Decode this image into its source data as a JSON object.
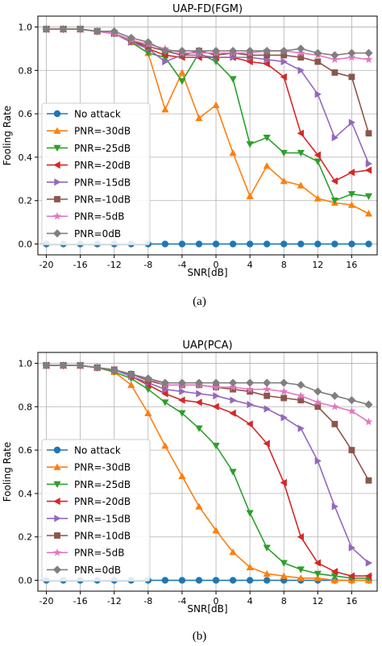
{
  "chart_data": [
    {
      "type": "line",
      "title": "UAP-FD(FGM)",
      "xlabel": "SNR[dB]",
      "ylabel": "Fooling Rate",
      "caption": "(a)",
      "xlim": [
        -21,
        19
      ],
      "ylim": [
        -0.05,
        1.05
      ],
      "xticks": [
        -20,
        -16,
        -12,
        -8,
        -4,
        0,
        4,
        8,
        12,
        16
      ],
      "xtick_labels": [
        "-20",
        "-16",
        "-12",
        "-8",
        "-4",
        "0",
        "4",
        "8",
        "12",
        "16"
      ],
      "yticks": [
        0.0,
        0.2,
        0.4,
        0.6,
        0.8,
        1.0
      ],
      "ytick_labels": [
        "0.0",
        "0.2",
        "0.4",
        "0.6",
        "0.8",
        "1.0"
      ],
      "grid": true,
      "legend_position": "lower-left",
      "x": [
        -20,
        -18,
        -16,
        -14,
        -12,
        -10,
        -8,
        -6,
        -4,
        -2,
        0,
        2,
        4,
        6,
        8,
        10,
        12,
        14,
        16,
        18
      ],
      "series": [
        {
          "name": "No attack",
          "color": "#1f77b4",
          "marker": "circle",
          "values": [
            0,
            0,
            0,
            0,
            0,
            0,
            0,
            0,
            0,
            0,
            0,
            0,
            0,
            0,
            0,
            0,
            0,
            0,
            0,
            0
          ]
        },
        {
          "name": "PNR=-30dB",
          "color": "#ff7f0e",
          "marker": "triangle-up",
          "values": [
            0.99,
            0.99,
            0.99,
            0.98,
            0.97,
            0.93,
            0.88,
            0.62,
            0.79,
            0.58,
            0.64,
            0.42,
            0.22,
            0.36,
            0.29,
            0.27,
            0.21,
            0.19,
            0.18,
            0.14
          ]
        },
        {
          "name": "PNR=-25dB",
          "color": "#2ca02c",
          "marker": "triangle-down",
          "values": [
            0.99,
            0.99,
            0.99,
            0.98,
            0.97,
            0.93,
            0.88,
            0.86,
            0.75,
            0.88,
            0.84,
            0.76,
            0.46,
            0.49,
            0.42,
            0.42,
            0.38,
            0.2,
            0.23,
            0.22
          ]
        },
        {
          "name": "PNR=-20dB",
          "color": "#d62728",
          "marker": "triangle-left",
          "values": [
            0.99,
            0.99,
            0.99,
            0.98,
            0.97,
            0.94,
            0.9,
            0.87,
            0.86,
            0.86,
            0.86,
            0.86,
            0.84,
            0.83,
            0.77,
            0.51,
            0.41,
            0.29,
            0.33,
            0.34
          ]
        },
        {
          "name": "PNR=-15dB",
          "color": "#9467bd",
          "marker": "triangle-right",
          "values": [
            0.99,
            0.99,
            0.99,
            0.98,
            0.97,
            0.93,
            0.9,
            0.84,
            0.87,
            0.87,
            0.86,
            0.86,
            0.86,
            0.85,
            0.84,
            0.8,
            0.69,
            0.49,
            0.56,
            0.37
          ]
        },
        {
          "name": "PNR=-10dB",
          "color": "#8c564b",
          "marker": "square",
          "values": [
            0.99,
            0.99,
            0.99,
            0.98,
            0.97,
            0.94,
            0.91,
            0.89,
            0.87,
            0.89,
            0.87,
            0.88,
            0.87,
            0.87,
            0.87,
            0.86,
            0.84,
            0.79,
            0.77,
            0.51
          ]
        },
        {
          "name": "PNR=-5dB",
          "color": "#e377c2",
          "marker": "star",
          "values": [
            0.99,
            0.99,
            0.99,
            0.98,
            0.97,
            0.94,
            0.92,
            0.9,
            0.88,
            0.88,
            0.88,
            0.88,
            0.88,
            0.89,
            0.89,
            0.88,
            0.87,
            0.85,
            0.86,
            0.85
          ]
        },
        {
          "name": "PNR=0dB",
          "color": "#7f7f7f",
          "marker": "diamond",
          "values": [
            0.99,
            0.99,
            0.99,
            0.98,
            0.98,
            0.95,
            0.93,
            0.89,
            0.89,
            0.89,
            0.89,
            0.89,
            0.89,
            0.89,
            0.89,
            0.9,
            0.88,
            0.87,
            0.88,
            0.88
          ]
        }
      ]
    },
    {
      "type": "line",
      "title": "UAP(PCA)",
      "xlabel": "SNR[dB]",
      "ylabel": "Fooling Rate",
      "caption": "(b)",
      "xlim": [
        -21,
        19
      ],
      "ylim": [
        -0.05,
        1.05
      ],
      "xticks": [
        -20,
        -16,
        -12,
        -8,
        -4,
        0,
        4,
        8,
        12,
        16
      ],
      "xtick_labels": [
        "-20",
        "-16",
        "-12",
        "-8",
        "-4",
        "0",
        "4",
        "8",
        "12",
        "16"
      ],
      "yticks": [
        0.0,
        0.2,
        0.4,
        0.6,
        0.8,
        1.0
      ],
      "ytick_labels": [
        "0.0",
        "0.2",
        "0.4",
        "0.6",
        "0.8",
        "1.0"
      ],
      "grid": true,
      "legend_position": "lower-left",
      "x": [
        -20,
        -18,
        -16,
        -14,
        -12,
        -10,
        -8,
        -6,
        -4,
        -2,
        0,
        2,
        4,
        6,
        8,
        10,
        12,
        14,
        16,
        18
      ],
      "series": [
        {
          "name": "No attack",
          "color": "#1f77b4",
          "marker": "circle",
          "values": [
            0,
            0,
            0,
            0,
            0,
            0,
            0,
            0,
            0,
            0,
            0,
            0,
            0,
            0,
            0,
            0,
            0,
            0,
            0,
            0
          ]
        },
        {
          "name": "PNR=-30dB",
          "color": "#ff7f0e",
          "marker": "triangle-up",
          "values": [
            0.99,
            0.99,
            0.99,
            0.98,
            0.96,
            0.9,
            0.77,
            0.62,
            0.48,
            0.34,
            0.23,
            0.13,
            0.06,
            0.03,
            0.02,
            0.01,
            0.01,
            0.0,
            0.0,
            0.0
          ]
        },
        {
          "name": "PNR=-25dB",
          "color": "#2ca02c",
          "marker": "triangle-down",
          "values": [
            0.99,
            0.99,
            0.99,
            0.98,
            0.96,
            0.93,
            0.88,
            0.82,
            0.77,
            0.7,
            0.62,
            0.5,
            0.31,
            0.15,
            0.08,
            0.05,
            0.03,
            0.02,
            0.01,
            0.01
          ]
        },
        {
          "name": "PNR=-20dB",
          "color": "#d62728",
          "marker": "triangle-left",
          "values": [
            0.99,
            0.99,
            0.99,
            0.98,
            0.97,
            0.94,
            0.9,
            0.86,
            0.83,
            0.82,
            0.8,
            0.77,
            0.72,
            0.63,
            0.45,
            0.2,
            0.08,
            0.04,
            0.02,
            0.02
          ]
        },
        {
          "name": "PNR=-15dB",
          "color": "#9467bd",
          "marker": "triangle-right",
          "values": [
            0.99,
            0.99,
            0.99,
            0.98,
            0.97,
            0.94,
            0.91,
            0.88,
            0.87,
            0.86,
            0.85,
            0.83,
            0.81,
            0.79,
            0.75,
            0.7,
            0.55,
            0.34,
            0.15,
            0.08
          ]
        },
        {
          "name": "PNR=-10dB",
          "color": "#8c564b",
          "marker": "square",
          "values": [
            0.99,
            0.99,
            0.99,
            0.98,
            0.97,
            0.95,
            0.92,
            0.9,
            0.9,
            0.9,
            0.89,
            0.88,
            0.87,
            0.85,
            0.84,
            0.83,
            0.8,
            0.72,
            0.6,
            0.46
          ]
        },
        {
          "name": "PNR=-5dB",
          "color": "#e377c2",
          "marker": "star",
          "values": [
            0.99,
            0.99,
            0.99,
            0.98,
            0.97,
            0.95,
            0.93,
            0.9,
            0.9,
            0.9,
            0.89,
            0.89,
            0.88,
            0.88,
            0.87,
            0.85,
            0.82,
            0.8,
            0.78,
            0.73
          ]
        },
        {
          "name": "PNR=0dB",
          "color": "#7f7f7f",
          "marker": "diamond",
          "values": [
            0.99,
            0.99,
            0.99,
            0.98,
            0.97,
            0.95,
            0.93,
            0.91,
            0.91,
            0.91,
            0.91,
            0.91,
            0.91,
            0.91,
            0.91,
            0.9,
            0.87,
            0.85,
            0.83,
            0.81
          ]
        }
      ]
    }
  ]
}
